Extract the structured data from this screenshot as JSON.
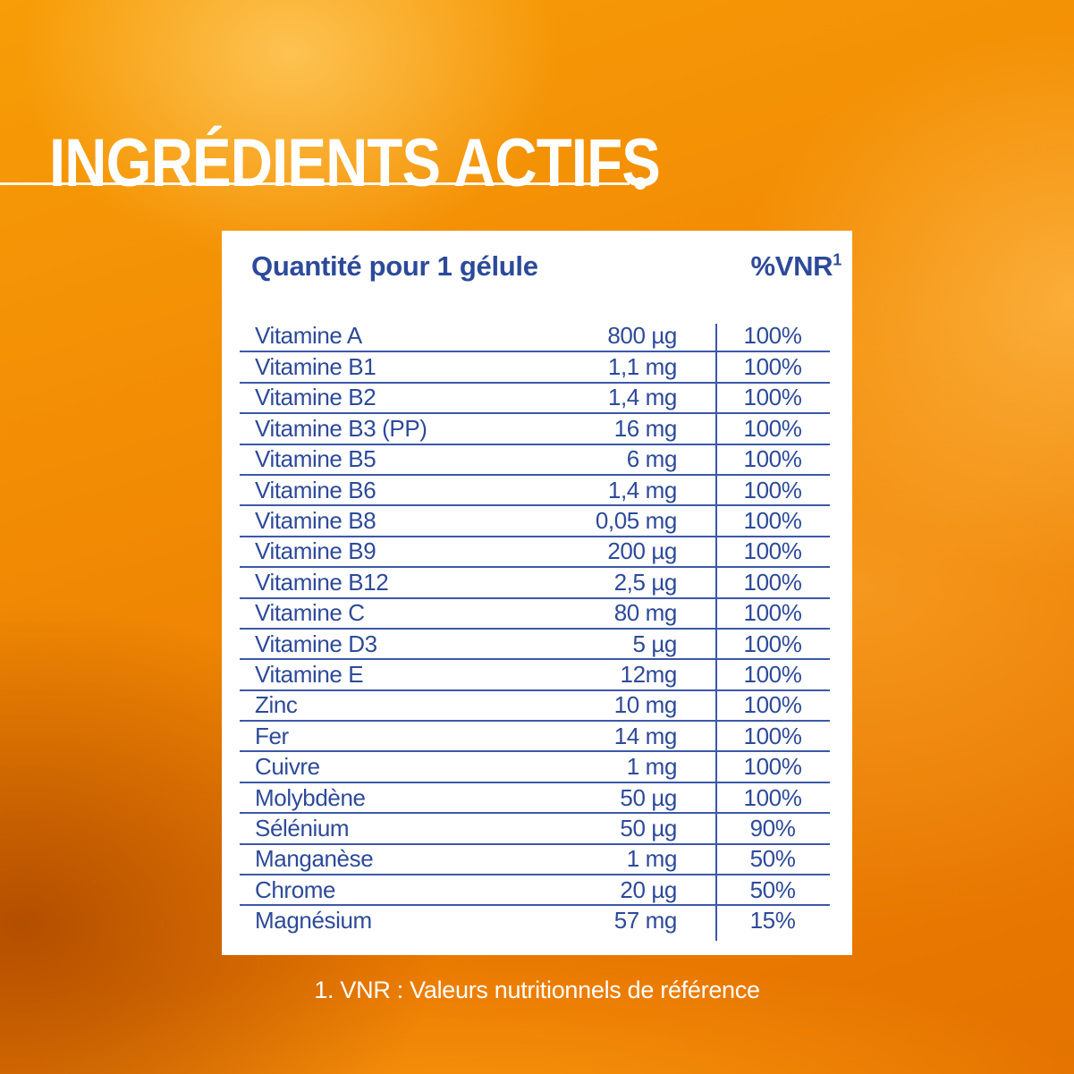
{
  "page": {
    "title": "INGRÉDIENTS ACTIFS",
    "footnote": "1. VNR : Valeurs nutritionnels de référence"
  },
  "card": {
    "header": {
      "quantity_label": "Quantité pour 1 gélule",
      "vnr_label": "%VNR",
      "vnr_superscript": "1"
    },
    "rows": [
      {
        "name": "Vitamine A",
        "quantity": "800 µg",
        "vnr": "100%"
      },
      {
        "name": "Vitamine B1",
        "quantity": "1,1 mg",
        "vnr": "100%"
      },
      {
        "name": "Vitamine B2",
        "quantity": "1,4 mg",
        "vnr": "100%"
      },
      {
        "name": "Vitamine B3 (PP)",
        "quantity": "16 mg",
        "vnr": "100%"
      },
      {
        "name": "Vitamine B5",
        "quantity": "6 mg",
        "vnr": "100%"
      },
      {
        "name": "Vitamine B6",
        "quantity": "1,4 mg",
        "vnr": "100%"
      },
      {
        "name": "Vitamine B8",
        "quantity": "0,05 mg",
        "vnr": "100%"
      },
      {
        "name": "Vitamine B9",
        "quantity": "200 µg",
        "vnr": "100%"
      },
      {
        "name": "Vitamine B12",
        "quantity": "2,5 µg",
        "vnr": "100%"
      },
      {
        "name": "Vitamine C",
        "quantity": "80 mg",
        "vnr": "100%"
      },
      {
        "name": "Vitamine D3",
        "quantity": "5 µg",
        "vnr": "100%"
      },
      {
        "name": "Vitamine E",
        "quantity": "12mg",
        "vnr": "100%"
      },
      {
        "name": "Zinc",
        "quantity": "10 mg",
        "vnr": "100%"
      },
      {
        "name": "Fer",
        "quantity": "14 mg",
        "vnr": "100%"
      },
      {
        "name": "Cuivre",
        "quantity": "1 mg",
        "vnr": "100%"
      },
      {
        "name": "Molybdène",
        "quantity": "50 µg",
        "vnr": "100%"
      },
      {
        "name": "Sélénium",
        "quantity": "50 µg",
        "vnr": "90%"
      },
      {
        "name": "Manganèse",
        "quantity": "1 mg",
        "vnr": "50%"
      },
      {
        "name": "Chrome",
        "quantity": "20 µg",
        "vnr": "50%"
      },
      {
        "name": "Magnésium",
        "quantity": "57 mg",
        "vnr": "15%"
      }
    ]
  },
  "colors": {
    "accent_blue": "#2d4a9a",
    "line_blue": "#3c58a8",
    "card_background": "#ffffff",
    "title_text": "#ffffff",
    "background_orange_light": "#f79d07",
    "background_orange_dark": "#e47300"
  }
}
